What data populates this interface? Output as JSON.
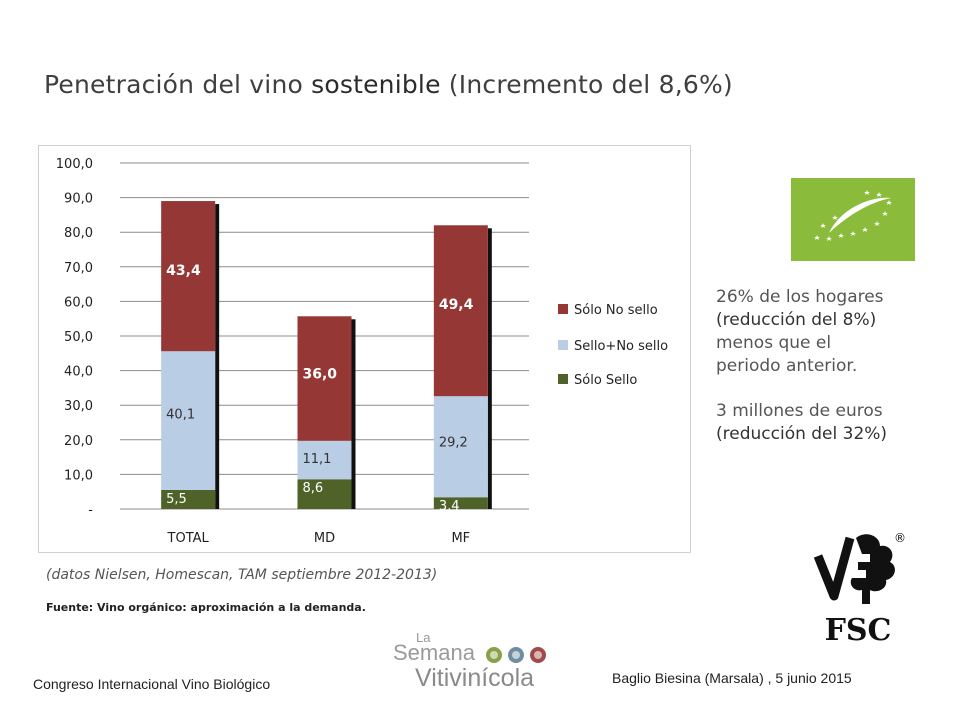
{
  "title": {
    "part1": "Penetración del vino ",
    "part2": "sostenible",
    "part3": " (Incremento del 8,6%)"
  },
  "chart_data": {
    "type": "bar",
    "stacked": true,
    "categories": [
      "TOTAL",
      "MD",
      "MF"
    ],
    "series": [
      {
        "name": "Sólo Sello",
        "values": [
          5.5,
          8.6,
          3.4
        ],
        "labels": [
          "5,5",
          "8,6",
          "3,4"
        ],
        "color": "#4f6228"
      },
      {
        "name": "Sello+No sello",
        "values": [
          40.1,
          11.1,
          29.2
        ],
        "labels": [
          "40,1",
          "11,1",
          "29,2"
        ],
        "color": "#b9cde5"
      },
      {
        "name": "Sólo No sello",
        "values": [
          43.4,
          36.0,
          49.4
        ],
        "labels": [
          "43,4",
          "36,0",
          "49,4"
        ],
        "color": "#953735"
      }
    ],
    "ylim": [
      0,
      100
    ],
    "yticks": [
      "-",
      "10,0",
      "20,0",
      "30,0",
      "40,0",
      "50,0",
      "60,0",
      "70,0",
      "80,0",
      "90,0",
      "100,0"
    ],
    "legend_order": [
      "Sólo No sello",
      "Sello+No sello",
      "Sólo Sello"
    ],
    "legend": "right",
    "grid": true
  },
  "note": "(datos Nielsen, Homescan, TAM septiembre 2012-2013)",
  "source": "Fuente: Vino orgánico: aproximación a la demanda.",
  "side": {
    "line1": "26% de los hogares",
    "line2": "(reducción del 8%)",
    "line3": "menos que el",
    "line4": "periodo anterior.",
    "line5": "3 millones de euros",
    "line6": "(reducción del 32%)"
  },
  "logos": {
    "fsc": "FSC",
    "fsc_registered": "®",
    "semana_la": "La",
    "semana_semana": "Semana",
    "semana_vitivinicola": "Vitivinícola"
  },
  "footer": {
    "left": "Congreso Internacional Vino Biológico",
    "right": "Baglio Biesina (Marsala) ,  5 junio 2015"
  }
}
